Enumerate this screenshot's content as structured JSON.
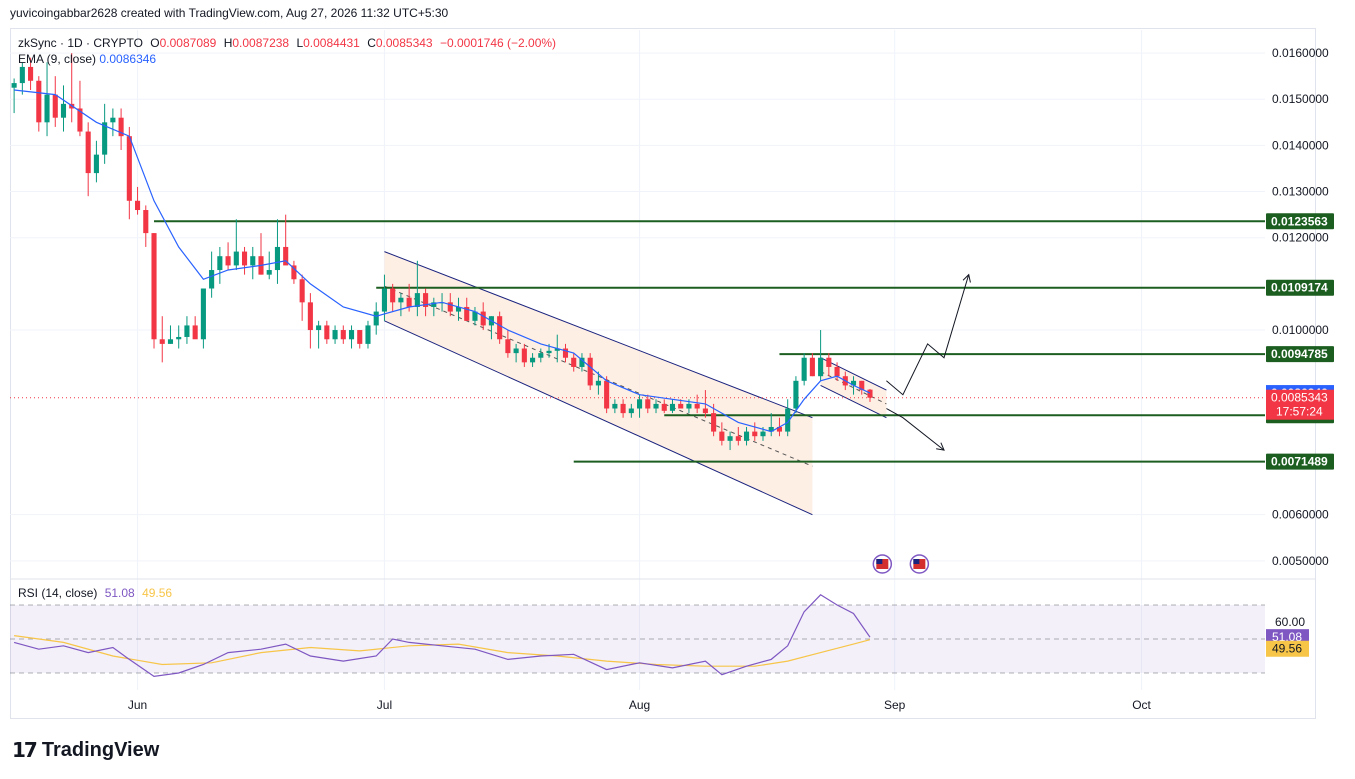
{
  "header": {
    "credit": "yuvicoingabbar2628 created with TradingView.com, Aug 27, 2026 11:32 UTC+5:30"
  },
  "legend": {
    "symbol": "zkSync · 1D · CRYPTO",
    "o_label": "O",
    "o_value": "0.0087089",
    "h_label": "H",
    "h_value": "0.0087238",
    "l_label": "L",
    "l_value": "0.0084431",
    "c_label": "C",
    "c_value": "0.0085343",
    "change": "−0.0001746 (−2.00%)",
    "ema_label": "EMA (9, close)",
    "ema_value": "0.0086346"
  },
  "rsi_legend": {
    "label": "RSI (14, close)",
    "rsi_value": "51.08",
    "ma_value": "49.56"
  },
  "footer": {
    "brand": "TradingView",
    "logo_icon": "tradingview-logo-icon"
  },
  "colors": {
    "up": "#089981",
    "down": "#f23645",
    "ema": "#2962ff",
    "level": "#1b5e20",
    "rsi": "#7e57c2",
    "rsi_ma": "#f7c548",
    "channel_fill": "#fde9dc",
    "channel_line": "#1a237e"
  },
  "chart_data": {
    "type": "candlestick",
    "title": "zkSync · 1D · CRYPTO",
    "y_ticks": [
      "0.0160000",
      "0.0150000",
      "0.0140000",
      "0.0130000",
      "0.0120000",
      "0.0100000",
      "0.0060000",
      "0.0050000"
    ],
    "y_tick_values": [
      0.016,
      0.015,
      0.014,
      0.013,
      0.012,
      0.01,
      0.006,
      0.005
    ],
    "ylim": [
      0.00465,
      0.0165
    ],
    "x_ticks": [
      "Jun",
      "Jul",
      "Aug",
      "Sep",
      "Oct"
    ],
    "x_tick_days": [
      15,
      45,
      76,
      107,
      137
    ],
    "xlim": [
      -0.5,
      152
    ],
    "horizontal_levels": [
      {
        "label": "0.0123563",
        "value": 0.0123563
      },
      {
        "label": "0.0109174",
        "value": 0.0109174
      },
      {
        "label": "0.0094785",
        "value": 0.0094785
      },
      {
        "label": "0.0081538",
        "value": 0.0081538
      },
      {
        "label": "0.0071489",
        "value": 0.0071489
      }
    ],
    "price_tags": [
      {
        "label": "0.0086346",
        "value": 0.0086346,
        "kind": "ema"
      },
      {
        "label": "0.0085343",
        "value": 0.0085343,
        "kind": "last",
        "countdown": "17:57:24"
      }
    ],
    "candles": [
      [
        0,
        0.01525,
        0.01545,
        0.0147,
        0.01535
      ],
      [
        1,
        0.01535,
        0.0158,
        0.0151,
        0.0157
      ],
      [
        2,
        0.0157,
        0.0159,
        0.0152,
        0.0154
      ],
      [
        3,
        0.0154,
        0.0155,
        0.0143,
        0.0145
      ],
      [
        4,
        0.0145,
        0.0158,
        0.0142,
        0.0151
      ],
      [
        5,
        0.0151,
        0.0155,
        0.0144,
        0.0146
      ],
      [
        6,
        0.0146,
        0.0153,
        0.0143,
        0.0149
      ],
      [
        7,
        0.0149,
        0.016,
        0.0145,
        0.0148
      ],
      [
        8,
        0.0148,
        0.0154,
        0.0142,
        0.0143
      ],
      [
        9,
        0.0143,
        0.0145,
        0.0129,
        0.0134
      ],
      [
        10,
        0.0134,
        0.0141,
        0.0132,
        0.0138
      ],
      [
        11,
        0.0138,
        0.0149,
        0.0136,
        0.0145
      ],
      [
        12,
        0.0145,
        0.0148,
        0.0142,
        0.0146
      ],
      [
        13,
        0.0146,
        0.0148,
        0.0139,
        0.0142
      ],
      [
        14,
        0.0142,
        0.0144,
        0.0124,
        0.0128
      ],
      [
        15,
        0.0128,
        0.0131,
        0.0125,
        0.0126
      ],
      [
        16,
        0.0126,
        0.0127,
        0.0118,
        0.0121
      ],
      [
        17,
        0.0121,
        0.0121,
        0.0096,
        0.0098
      ],
      [
        18,
        0.0098,
        0.0103,
        0.0093,
        0.0097
      ],
      [
        19,
        0.0097,
        0.0101,
        0.0097,
        0.0098
      ],
      [
        20,
        0.0098,
        0.0101,
        0.0096,
        0.00985
      ],
      [
        21,
        0.00985,
        0.0103,
        0.0097,
        0.0101
      ],
      [
        22,
        0.0101,
        0.0103,
        0.0099,
        0.0098
      ],
      [
        23,
        0.0098,
        0.0109,
        0.0096,
        0.0109
      ],
      [
        24,
        0.0109,
        0.0117,
        0.0107,
        0.0113
      ],
      [
        25,
        0.0113,
        0.0118,
        0.011,
        0.0116
      ],
      [
        26,
        0.0116,
        0.0119,
        0.0113,
        0.0114
      ],
      [
        27,
        0.0114,
        0.0124,
        0.0113,
        0.0117
      ],
      [
        28,
        0.0117,
        0.0118,
        0.0112,
        0.0114
      ],
      [
        29,
        0.0114,
        0.0118,
        0.0111,
        0.0116
      ],
      [
        30,
        0.0116,
        0.0121,
        0.0112,
        0.0112
      ],
      [
        31,
        0.0112,
        0.0117,
        0.0111,
        0.0113
      ],
      [
        32,
        0.0113,
        0.0124,
        0.011,
        0.0118
      ],
      [
        33,
        0.0118,
        0.0125,
        0.0115,
        0.0114
      ],
      [
        34,
        0.0114,
        0.0115,
        0.011,
        0.0111
      ],
      [
        35,
        0.0111,
        0.0112,
        0.0102,
        0.0106
      ],
      [
        36,
        0.0106,
        0.0108,
        0.0096,
        0.01
      ],
      [
        37,
        0.01,
        0.0102,
        0.0096,
        0.0101
      ],
      [
        38,
        0.0101,
        0.0102,
        0.0097,
        0.0098
      ],
      [
        39,
        0.0098,
        0.0101,
        0.0097,
        0.01
      ],
      [
        40,
        0.01,
        0.0101,
        0.0097,
        0.0098
      ],
      [
        41,
        0.0098,
        0.0101,
        0.0096,
        0.01
      ],
      [
        42,
        0.01,
        0.01,
        0.0096,
        0.0097
      ],
      [
        43,
        0.0097,
        0.0102,
        0.0096,
        0.0101
      ],
      [
        44,
        0.0101,
        0.0106,
        0.0099,
        0.0104
      ],
      [
        45,
        0.0104,
        0.0112,
        0.0102,
        0.0109
      ],
      [
        46,
        0.0109,
        0.011,
        0.0104,
        0.0106
      ],
      [
        47,
        0.0106,
        0.0108,
        0.0103,
        0.0107
      ],
      [
        48,
        0.0107,
        0.011,
        0.0104,
        0.0105
      ],
      [
        49,
        0.0105,
        0.0115,
        0.0103,
        0.0108
      ],
      [
        50,
        0.0108,
        0.0109,
        0.0103,
        0.0105
      ],
      [
        51,
        0.0105,
        0.0107,
        0.0103,
        0.0106
      ],
      [
        52,
        0.0106,
        0.0108,
        0.0104,
        0.0106
      ],
      [
        53,
        0.0106,
        0.0108,
        0.0103,
        0.0104
      ],
      [
        54,
        0.0104,
        0.0107,
        0.0102,
        0.0105
      ],
      [
        55,
        0.0105,
        0.0107,
        0.0102,
        0.0102
      ],
      [
        56,
        0.0102,
        0.0105,
        0.0101,
        0.0104
      ],
      [
        57,
        0.0104,
        0.0106,
        0.01,
        0.0101
      ],
      [
        58,
        0.0101,
        0.0103,
        0.0098,
        0.0103
      ],
      [
        59,
        0.0103,
        0.0104,
        0.0097,
        0.0098
      ],
      [
        60,
        0.0098,
        0.01,
        0.0094,
        0.0095
      ],
      [
        61,
        0.0095,
        0.0097,
        0.0093,
        0.0096
      ],
      [
        62,
        0.0096,
        0.0097,
        0.0092,
        0.0093
      ],
      [
        63,
        0.0093,
        0.0095,
        0.0092,
        0.0094
      ],
      [
        64,
        0.0094,
        0.0096,
        0.0093,
        0.0095
      ],
      [
        65,
        0.0095,
        0.0097,
        0.0094,
        0.00955
      ],
      [
        66,
        0.00955,
        0.0099,
        0.0093,
        0.0096
      ],
      [
        67,
        0.0096,
        0.0097,
        0.0093,
        0.0094
      ],
      [
        68,
        0.0094,
        0.0095,
        0.0091,
        0.0092
      ],
      [
        69,
        0.0092,
        0.0095,
        0.0091,
        0.0094
      ],
      [
        70,
        0.0094,
        0.0095,
        0.0087,
        0.0088
      ],
      [
        71,
        0.0088,
        0.0091,
        0.0086,
        0.0089
      ],
      [
        72,
        0.0089,
        0.009,
        0.0082,
        0.0083
      ],
      [
        73,
        0.0083,
        0.0085,
        0.0082,
        0.0084
      ],
      [
        74,
        0.0084,
        0.0085,
        0.0081,
        0.0082
      ],
      [
        75,
        0.0082,
        0.0084,
        0.0081,
        0.0083
      ],
      [
        76,
        0.0083,
        0.0086,
        0.0081,
        0.0085
      ],
      [
        77,
        0.0085,
        0.0086,
        0.0082,
        0.0083
      ],
      [
        78,
        0.0083,
        0.0085,
        0.0082,
        0.0084
      ],
      [
        79,
        0.0084,
        0.0085,
        0.0082,
        0.00825
      ],
      [
        80,
        0.00825,
        0.0085,
        0.0082,
        0.0084
      ],
      [
        81,
        0.0084,
        0.0085,
        0.0083,
        0.0083
      ],
      [
        82,
        0.0083,
        0.0085,
        0.0082,
        0.0084
      ],
      [
        83,
        0.0084,
        0.0086,
        0.0082,
        0.0083
      ],
      [
        84,
        0.0083,
        0.0087,
        0.0081,
        0.0082
      ],
      [
        85,
        0.0082,
        0.0084,
        0.0077,
        0.0078
      ],
      [
        86,
        0.0078,
        0.008,
        0.0075,
        0.0076
      ],
      [
        87,
        0.0076,
        0.0078,
        0.0074,
        0.0077
      ],
      [
        88,
        0.0077,
        0.0079,
        0.0075,
        0.0076
      ],
      [
        89,
        0.0076,
        0.0079,
        0.0075,
        0.0078
      ],
      [
        90,
        0.0078,
        0.008,
        0.0076,
        0.0077
      ],
      [
        91,
        0.0077,
        0.0079,
        0.0076,
        0.0078
      ],
      [
        92,
        0.0078,
        0.0082,
        0.0077,
        0.0079
      ],
      [
        93,
        0.0079,
        0.0081,
        0.0077,
        0.0078
      ],
      [
        94,
        0.0078,
        0.0085,
        0.0077,
        0.0083
      ],
      [
        95,
        0.0083,
        0.009,
        0.0082,
        0.0089
      ],
      [
        96,
        0.0089,
        0.0095,
        0.0088,
        0.0094
      ],
      [
        97,
        0.0094,
        0.0095,
        0.009,
        0.009
      ],
      [
        98,
        0.009,
        0.01,
        0.0089,
        0.0094
      ],
      [
        99,
        0.0094,
        0.0095,
        0.009,
        0.0092
      ],
      [
        100,
        0.0092,
        0.0093,
        0.0089,
        0.009
      ],
      [
        101,
        0.009,
        0.0091,
        0.0087,
        0.0088
      ],
      [
        102,
        0.0088,
        0.009,
        0.0086,
        0.0089
      ],
      [
        103,
        0.0089,
        0.0089,
        0.0086,
        0.0087
      ],
      [
        104,
        0.0087089,
        0.0087238,
        0.0084431,
        0.0085343
      ]
    ],
    "ema": [
      [
        0,
        0.0152
      ],
      [
        5,
        0.0151
      ],
      [
        10,
        0.0145
      ],
      [
        14,
        0.0142
      ],
      [
        17,
        0.0128
      ],
      [
        20,
        0.0118
      ],
      [
        23,
        0.0111
      ],
      [
        26,
        0.0113
      ],
      [
        30,
        0.0114
      ],
      [
        33,
        0.0115
      ],
      [
        36,
        0.011
      ],
      [
        40,
        0.0105
      ],
      [
        44,
        0.0103
      ],
      [
        48,
        0.0105
      ],
      [
        52,
        0.0106
      ],
      [
        56,
        0.0104
      ],
      [
        60,
        0.01
      ],
      [
        64,
        0.0097
      ],
      [
        68,
        0.0095
      ],
      [
        72,
        0.0089
      ],
      [
        76,
        0.0086
      ],
      [
        80,
        0.0085
      ],
      [
        84,
        0.0084
      ],
      [
        88,
        0.008
      ],
      [
        92,
        0.0078
      ],
      [
        94,
        0.008
      ],
      [
        96,
        0.0085
      ],
      [
        98,
        0.0089
      ],
      [
        100,
        0.009
      ],
      [
        102,
        0.0088
      ],
      [
        104,
        0.0086346
      ]
    ],
    "channels": [
      {
        "upper": [
          [
            45,
            0.0117
          ],
          [
            97,
            0.0081
          ]
        ],
        "lower": [
          [
            45,
            0.0102
          ],
          [
            97,
            0.006
          ]
        ],
        "mid": [
          [
            45,
            0.01095
          ],
          [
            97,
            0.00705
          ]
        ]
      },
      {
        "upper": [
          [
            98,
            0.0094
          ],
          [
            106,
            0.0087
          ]
        ],
        "lower": [
          [
            98,
            0.0088
          ],
          [
            106,
            0.0081
          ]
        ],
        "mid": [
          [
            98,
            0.0091
          ],
          [
            106,
            0.0084
          ]
        ]
      }
    ],
    "projection_paths": [
      [
        [
          106,
          0.0089
        ],
        [
          108,
          0.0086
        ],
        [
          111,
          0.0097
        ],
        [
          113,
          0.0094
        ],
        [
          116,
          0.0112
        ]
      ],
      [
        [
          106,
          0.0083
        ],
        [
          108,
          0.0081
        ],
        [
          113,
          0.0074
        ]
      ]
    ],
    "rsi": {
      "label": "RSI (14, close)",
      "band_upper": 70,
      "band_lower": 30,
      "mid": 50,
      "ylim": [
        20,
        80
      ],
      "tick_labels": [
        "60.00"
      ],
      "tick_values": [
        60
      ],
      "rsi_line": [
        [
          0,
          48
        ],
        [
          3,
          44
        ],
        [
          6,
          46
        ],
        [
          9,
          42
        ],
        [
          12,
          45
        ],
        [
          14,
          38
        ],
        [
          17,
          28
        ],
        [
          20,
          30
        ],
        [
          23,
          35
        ],
        [
          26,
          42
        ],
        [
          30,
          44
        ],
        [
          33,
          47
        ],
        [
          36,
          40
        ],
        [
          40,
          37
        ],
        [
          44,
          40
        ],
        [
          46,
          50
        ],
        [
          48,
          48
        ],
        [
          52,
          46
        ],
        [
          56,
          44
        ],
        [
          60,
          38
        ],
        [
          64,
          40
        ],
        [
          68,
          41
        ],
        [
          72,
          32
        ],
        [
          76,
          36
        ],
        [
          80,
          33
        ],
        [
          84,
          37
        ],
        [
          86,
          29
        ],
        [
          89,
          34
        ],
        [
          92,
          38
        ],
        [
          94,
          46
        ],
        [
          96,
          66
        ],
        [
          98,
          76
        ],
        [
          100,
          70
        ],
        [
          102,
          65
        ],
        [
          104,
          51.08
        ]
      ],
      "rsi_ma": [
        [
          0,
          52
        ],
        [
          6,
          48
        ],
        [
          12,
          40
        ],
        [
          18,
          35
        ],
        [
          24,
          36
        ],
        [
          30,
          42
        ],
        [
          36,
          45
        ],
        [
          42,
          43
        ],
        [
          48,
          46
        ],
        [
          54,
          47
        ],
        [
          60,
          42
        ],
        [
          66,
          40
        ],
        [
          72,
          37
        ],
        [
          78,
          35
        ],
        [
          84,
          34
        ],
        [
          90,
          34
        ],
        [
          94,
          37
        ],
        [
          98,
          42
        ],
        [
          102,
          47
        ],
        [
          104,
          49.56
        ]
      ]
    }
  }
}
